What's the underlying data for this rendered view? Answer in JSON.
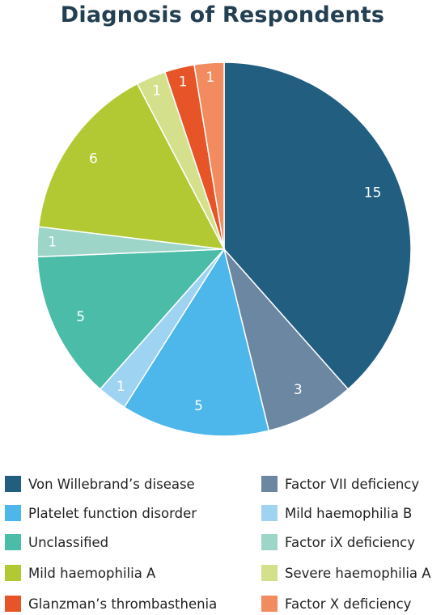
{
  "chart_data": {
    "type": "pie",
    "title": "Diagnosis of Respondents",
    "slices": [
      {
        "label": "Von Willebrand’s disease",
        "value": 15,
        "color": "#215e80"
      },
      {
        "label": "Factor VII deficiency",
        "value": 3,
        "color": "#6b87a2"
      },
      {
        "label": "Platelet function disorder",
        "value": 5,
        "color": "#4db6ea"
      },
      {
        "label": "Mild haemophilia B",
        "value": 1,
        "color": "#9fd3f2"
      },
      {
        "label": "Unclassified",
        "value": 5,
        "color": "#4bbca8"
      },
      {
        "label": "Factor iX deficiency",
        "value": 1,
        "color": "#9dd5c9"
      },
      {
        "label": "Mild haemophilia A",
        "value": 6,
        "color": "#b3c934"
      },
      {
        "label": "Severe haemophilia A",
        "value": 1,
        "color": "#d5e08c"
      },
      {
        "label": "Glanzman’s thrombasthenia",
        "value": 1,
        "color": "#e65427"
      },
      {
        "label": "Factor X deficiency",
        "value": 1,
        "color": "#f28b5f"
      }
    ],
    "legend_position": "bottom"
  }
}
